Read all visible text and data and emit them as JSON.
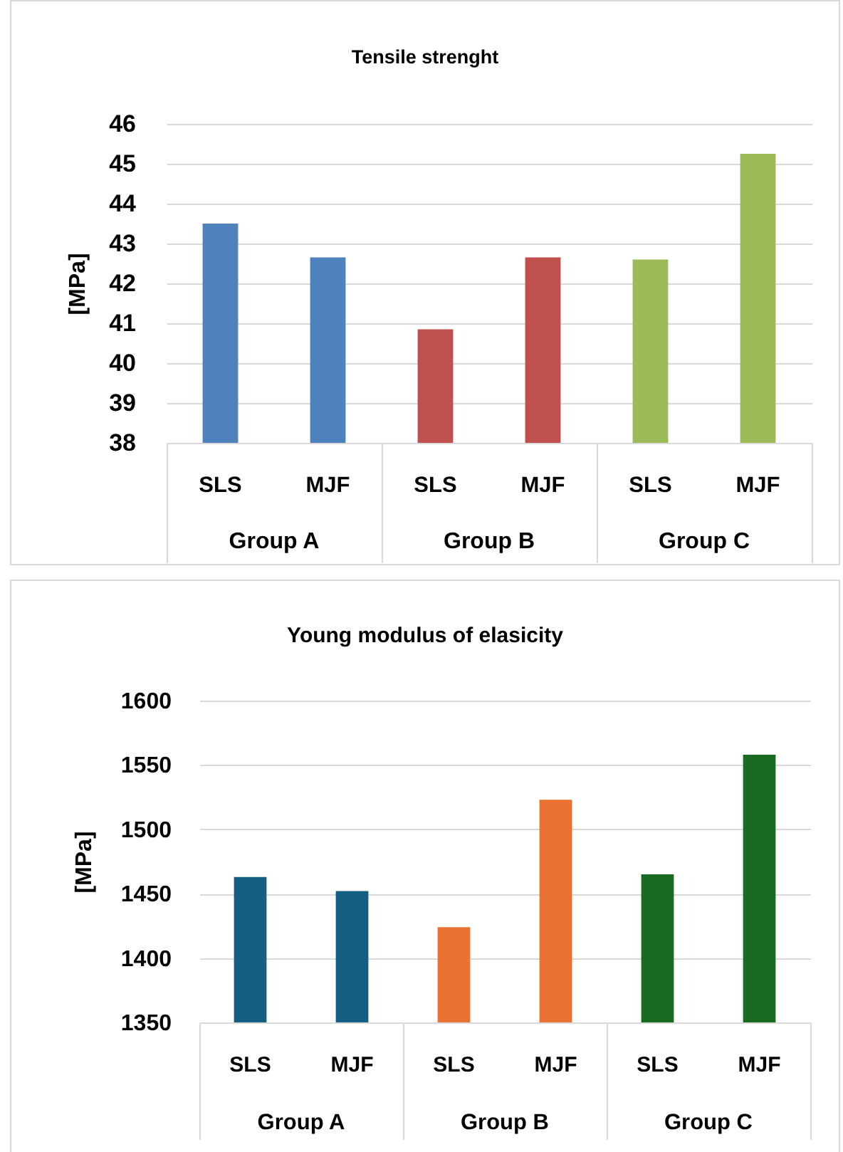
{
  "chart_data": [
    {
      "type": "bar",
      "title": "Tensile strenght",
      "ylabel": "[MPa]",
      "categories": [
        "SLS",
        "MJF",
        "SLS",
        "MJF",
        "SLS",
        "MJF"
      ],
      "values": [
        43.5,
        42.65,
        40.85,
        42.65,
        42.6,
        45.25
      ],
      "colors": [
        "#4f81bd",
        "#4f81bd",
        "#c0504d",
        "#c0504d",
        "#9bbb59",
        "#9bbb59"
      ],
      "annotations": [
        "Group A",
        "Group B",
        "Group C"
      ],
      "ylim": [
        38,
        46
      ],
      "yticks": [
        38,
        39,
        40,
        41,
        42,
        43,
        44,
        45,
        46
      ],
      "grid": "y"
    },
    {
      "type": "bar",
      "title": "Young modulus of elasicity",
      "ylabel": "[MPa]",
      "categories": [
        "SLS",
        "MJF",
        "SLS",
        "MJF",
        "SLS",
        "MJF"
      ],
      "values": [
        1463,
        1452,
        1424,
        1523,
        1465,
        1558
      ],
      "colors": [
        "#156082",
        "#156082",
        "#e97132",
        "#e97132",
        "#196b24",
        "#196b24"
      ],
      "annotations": [
        "Group A",
        "Group B",
        "Group C"
      ],
      "ylim": [
        1350,
        1600
      ],
      "yticks": [
        1350,
        1400,
        1450,
        1500,
        1550,
        1600
      ],
      "grid": "y"
    }
  ]
}
